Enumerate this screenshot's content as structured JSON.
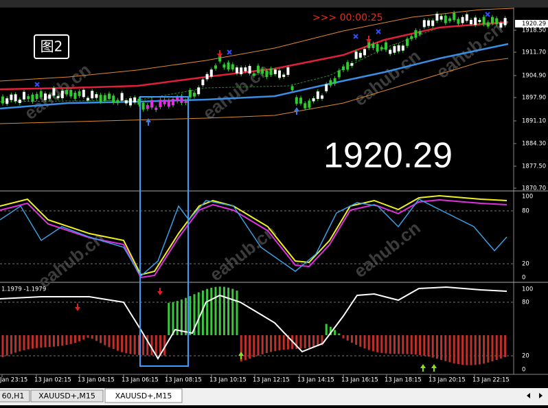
{
  "chart": {
    "timer": ">>> 00:00:25",
    "label": "图2",
    "big_price": "1920.29",
    "current_price": "1920.29",
    "price_axis": [
      "1918.50",
      "1911.70",
      "1904.90",
      "1897.90",
      "1891.10",
      "1884.30",
      "1877.50",
      "1870.70"
    ],
    "osc_axis": [
      "100",
      "80",
      "20",
      "0"
    ],
    "indicator_label": "1.1979 -1.1979",
    "indicator_axis": [
      "100",
      "80",
      "20",
      "0"
    ],
    "time_axis": [
      "Jan 23:15",
      "13 Jan 02:15",
      "13 Jan 04:15",
      "13 Jan 06:15",
      "13 Jan 08:15",
      "13 Jan 10:15",
      "13 Jan 12:15",
      "13 Jan 14:15",
      "13 Jan 16:15",
      "13 Jan 18:15",
      "13 Jan 20:15",
      "13 Jan 22:15"
    ],
    "watermark": "eahub.cn"
  },
  "tabs": [
    "60,H1",
    "XAUUSD+,M15",
    "XAUUSD+,M15"
  ]
}
